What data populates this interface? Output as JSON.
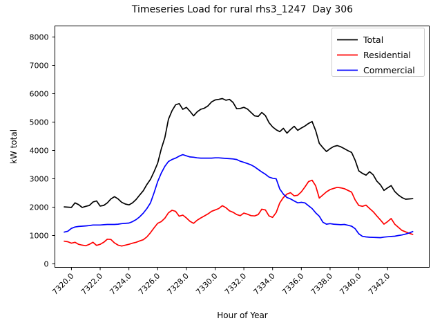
{
  "chart_data": {
    "type": "line",
    "title": "Timeseries Load for rural rhs3_1247  Day 306",
    "xlabel": "Hour of Year",
    "ylabel": "kW total",
    "grid": false,
    "background": "#ffffff",
    "xlim": [
      7318.85,
      7344.9
    ],
    "ylim": [
      -122,
      8390
    ],
    "x": {
      "start": 7319.5,
      "step": 0.25,
      "count": 98,
      "end": 7343.75
    },
    "xticks": {
      "values": [
        7320,
        7322,
        7324,
        7326,
        7328,
        7330,
        7332,
        7334,
        7336,
        7338,
        7340,
        7342
      ],
      "labels": [
        "7320.0",
        "7322.0",
        "7324.0",
        "7326.0",
        "7328.0",
        "7330.0",
        "7332.0",
        "7334.0",
        "7336.0",
        "7338.0",
        "7340.0",
        "7342.0"
      ],
      "rotation": 45
    },
    "yticks": {
      "values": [
        0,
        1000,
        2000,
        3000,
        4000,
        5000,
        6000,
        7000,
        8000
      ],
      "labels": [
        "0",
        "1000",
        "2000",
        "3000",
        "4000",
        "5000",
        "6000",
        "7000",
        "8000"
      ]
    },
    "legend": {
      "position": "upper right",
      "border_color": "#cccccc",
      "entries": [
        {
          "label": "Total",
          "color": "#000000"
        },
        {
          "label": "Residential",
          "color": "#ff0000"
        },
        {
          "label": "Commercial",
          "color": "#0000ff"
        }
      ]
    },
    "series": [
      {
        "name": "Total",
        "color": "#000000",
        "values": [
          2010,
          2000,
          1990,
          2150,
          2090,
          1990,
          2030,
          2060,
          2180,
          2220,
          2040,
          2060,
          2150,
          2290,
          2370,
          2290,
          2170,
          2110,
          2080,
          2150,
          2270,
          2430,
          2580,
          2800,
          2980,
          3250,
          3550,
          4050,
          4450,
          5100,
          5400,
          5610,
          5650,
          5450,
          5520,
          5380,
          5220,
          5360,
          5450,
          5490,
          5570,
          5710,
          5780,
          5800,
          5830,
          5770,
          5800,
          5690,
          5470,
          5480,
          5520,
          5460,
          5340,
          5220,
          5200,
          5340,
          5230,
          4980,
          4830,
          4730,
          4660,
          4780,
          4610,
          4740,
          4850,
          4710,
          4790,
          4860,
          4950,
          5020,
          4700,
          4250,
          4100,
          3960,
          4060,
          4140,
          4170,
          4130,
          4060,
          3990,
          3930,
          3650,
          3280,
          3190,
          3130,
          3250,
          3140,
          2920,
          2790,
          2590,
          2680,
          2760,
          2550,
          2430,
          2340,
          2280,
          2290,
          2300
        ]
      },
      {
        "name": "Residential",
        "color": "#ff0000",
        "values": [
          800,
          780,
          730,
          760,
          690,
          660,
          640,
          690,
          760,
          650,
          690,
          760,
          870,
          860,
          740,
          660,
          630,
          660,
          690,
          730,
          760,
          810,
          850,
          950,
          1100,
          1270,
          1430,
          1490,
          1610,
          1800,
          1890,
          1850,
          1680,
          1720,
          1620,
          1500,
          1430,
          1540,
          1620,
          1690,
          1760,
          1850,
          1900,
          1950,
          2050,
          1980,
          1870,
          1820,
          1740,
          1700,
          1790,
          1750,
          1700,
          1690,
          1740,
          1930,
          1900,
          1690,
          1640,
          1810,
          2150,
          2340,
          2460,
          2510,
          2400,
          2420,
          2540,
          2710,
          2900,
          2950,
          2750,
          2320,
          2430,
          2540,
          2620,
          2660,
          2700,
          2680,
          2650,
          2590,
          2530,
          2250,
          2060,
          2030,
          2070,
          1950,
          1840,
          1690,
          1550,
          1400,
          1490,
          1600,
          1400,
          1290,
          1180,
          1130,
          1080,
          1040
        ]
      },
      {
        "name": "Commercial",
        "color": "#0000ff",
        "values": [
          1120,
          1150,
          1250,
          1300,
          1320,
          1330,
          1340,
          1350,
          1370,
          1370,
          1370,
          1380,
          1390,
          1390,
          1390,
          1400,
          1420,
          1430,
          1440,
          1490,
          1560,
          1660,
          1790,
          1950,
          2150,
          2510,
          2900,
          3200,
          3440,
          3610,
          3680,
          3730,
          3800,
          3850,
          3810,
          3770,
          3760,
          3740,
          3730,
          3730,
          3730,
          3730,
          3740,
          3740,
          3730,
          3720,
          3710,
          3700,
          3680,
          3620,
          3580,
          3540,
          3490,
          3420,
          3330,
          3240,
          3160,
          3060,
          3020,
          3000,
          2640,
          2460,
          2340,
          2290,
          2220,
          2150,
          2170,
          2150,
          2050,
          1950,
          1800,
          1680,
          1470,
          1400,
          1420,
          1400,
          1390,
          1380,
          1390,
          1360,
          1330,
          1240,
          1060,
          970,
          950,
          940,
          935,
          930,
          925,
          945,
          955,
          965,
          975,
          1000,
          1020,
          1050,
          1090,
          1140
        ]
      }
    ]
  }
}
